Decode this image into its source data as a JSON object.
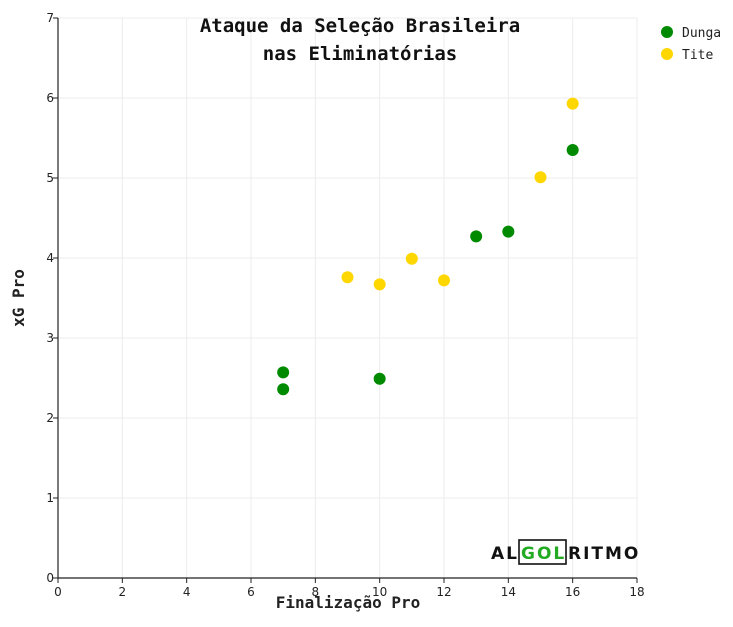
{
  "chart_data": {
    "type": "scatter",
    "title_line1": "Ataque da Seleção Brasileira",
    "title_line2": "nas Eliminatórias",
    "xlabel": "Finalização Pro",
    "ylabel": "xG Pro",
    "xlim": [
      0,
      18
    ],
    "ylim": [
      0,
      7
    ],
    "x_ticks": [
      "0",
      "2",
      "4",
      "6",
      "8",
      "10",
      "12",
      "14",
      "16",
      "18"
    ],
    "y_ticks": [
      "0",
      "1",
      "2",
      "3",
      "4",
      "5",
      "6",
      "7"
    ],
    "grid": true,
    "legend_position": "top-right",
    "series": [
      {
        "name": "Dunga",
        "color": "#008a00",
        "points": [
          {
            "x": 7,
            "y": 2.57
          },
          {
            "x": 7,
            "y": 2.36
          },
          {
            "x": 10,
            "y": 2.49
          },
          {
            "x": 13,
            "y": 4.27
          },
          {
            "x": 14,
            "y": 4.33
          },
          {
            "x": 16,
            "y": 5.35
          }
        ]
      },
      {
        "name": "Tite",
        "color": "#ffd700",
        "points": [
          {
            "x": 9,
            "y": 3.76
          },
          {
            "x": 10,
            "y": 3.67
          },
          {
            "x": 11,
            "y": 3.99
          },
          {
            "x": 12,
            "y": 3.72
          },
          {
            "x": 15,
            "y": 5.01
          },
          {
            "x": 16,
            "y": 5.93
          }
        ]
      }
    ]
  },
  "logo": {
    "part1": "AL",
    "part2": "GOL",
    "part3": "RITMO",
    "text_color": "#111111",
    "accent_color": "#22aa22"
  }
}
